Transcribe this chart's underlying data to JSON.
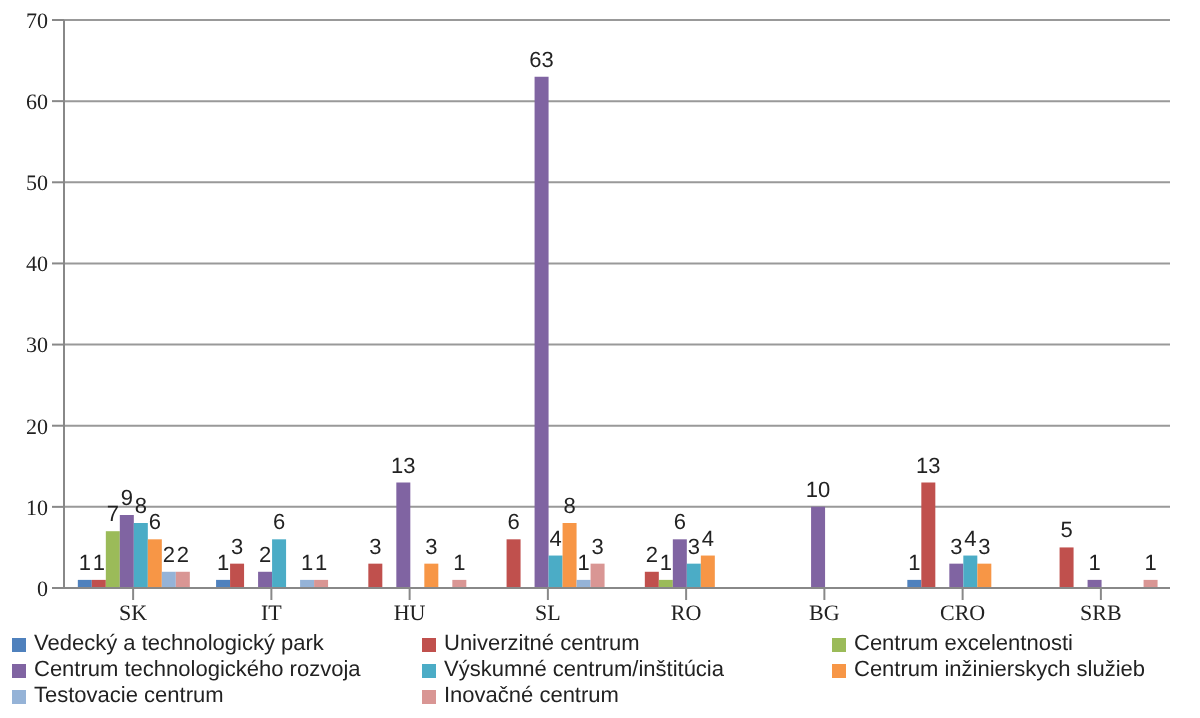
{
  "chart_data": {
    "type": "bar",
    "categories": [
      "SK",
      "IT",
      "HU",
      "SL",
      "RO",
      "BG",
      "CRO",
      "SRB"
    ],
    "series": [
      {
        "name": "Vedecký a technologický park",
        "color": "#4f81bd",
        "values": [
          1,
          1,
          null,
          null,
          null,
          null,
          1,
          null
        ]
      },
      {
        "name": "Univerzitné centrum",
        "color": "#c0504d",
        "values": [
          1,
          3,
          3,
          6,
          2,
          null,
          13,
          5
        ]
      },
      {
        "name": "Centrum excelentnosti",
        "color": "#9bbb59",
        "values": [
          7,
          null,
          null,
          null,
          1,
          null,
          null,
          null
        ]
      },
      {
        "name": "Centrum technologického rozvoja",
        "color": "#8064a2",
        "values": [
          9,
          2,
          13,
          63,
          6,
          10,
          3,
          1
        ]
      },
      {
        "name": "Výskumné centrum/inštitúcia",
        "color": "#4bacc6",
        "values": [
          8,
          6,
          null,
          4,
          3,
          null,
          4,
          null
        ]
      },
      {
        "name": "Centrum inžinierskych služieb",
        "color": "#f79646",
        "values": [
          6,
          null,
          3,
          8,
          4,
          null,
          3,
          null
        ]
      },
      {
        "name": "Testovacie centrum",
        "color": "#95b3d7",
        "values": [
          2,
          1,
          null,
          1,
          null,
          null,
          null,
          null
        ]
      },
      {
        "name": "Inovačné centrum",
        "color": "#d99694",
        "values": [
          2,
          1,
          1,
          3,
          null,
          null,
          null,
          1
        ]
      }
    ],
    "ylim": [
      0,
      70
    ],
    "yticks": [
      0,
      10,
      20,
      30,
      40,
      50,
      60,
      70
    ],
    "grid": "y",
    "legend": "bottom",
    "data_labels": true
  }
}
